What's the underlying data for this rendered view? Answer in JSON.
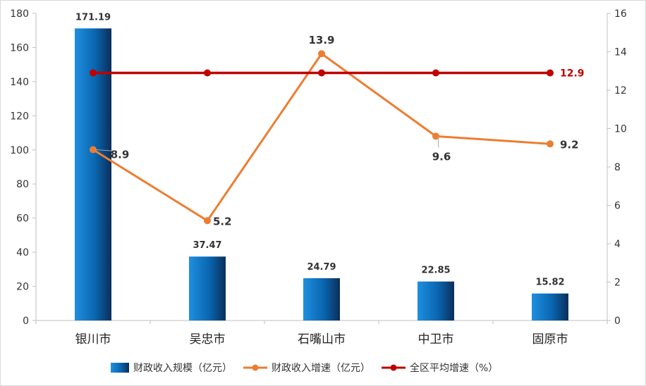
{
  "chart_data": {
    "type": "bar",
    "categories": [
      "银川市",
      "吴忠市",
      "石嘴山市",
      "中卫市",
      "固原市"
    ],
    "series": [
      {
        "name": "财政收入规模（亿元）",
        "type": "bar",
        "axis": "left",
        "values": [
          171.19,
          37.47,
          24.79,
          22.85,
          15.82
        ],
        "labels": [
          "171.19",
          "37.47",
          "24.79",
          "22.85",
          "15.82"
        ],
        "color": "#0070C0"
      },
      {
        "name": "财政收入增速（亿元）",
        "type": "line",
        "axis": "right",
        "values": [
          8.9,
          5.2,
          13.9,
          9.6,
          9.2
        ],
        "labels": [
          "8.9",
          "5.2",
          "13.9",
          "9.6",
          "9.2"
        ],
        "color": "#ED7D31"
      },
      {
        "name": "全区平均增速（%）",
        "type": "line",
        "axis": "right",
        "values": [
          12.9,
          12.9,
          12.9,
          12.9,
          12.9
        ],
        "labels": [
          "12.9"
        ],
        "color": "#C00000"
      }
    ],
    "y_left": {
      "min": 0,
      "max": 180,
      "step": 20,
      "ticks": [
        "0",
        "20",
        "40",
        "60",
        "80",
        "100",
        "120",
        "140",
        "160",
        "180"
      ]
    },
    "y_right": {
      "min": 0,
      "max": 16,
      "step": 2,
      "ticks": [
        "0",
        "2",
        "4",
        "6",
        "8",
        "10",
        "12",
        "14",
        "16"
      ]
    },
    "grid": false,
    "legend_position": "bottom"
  }
}
